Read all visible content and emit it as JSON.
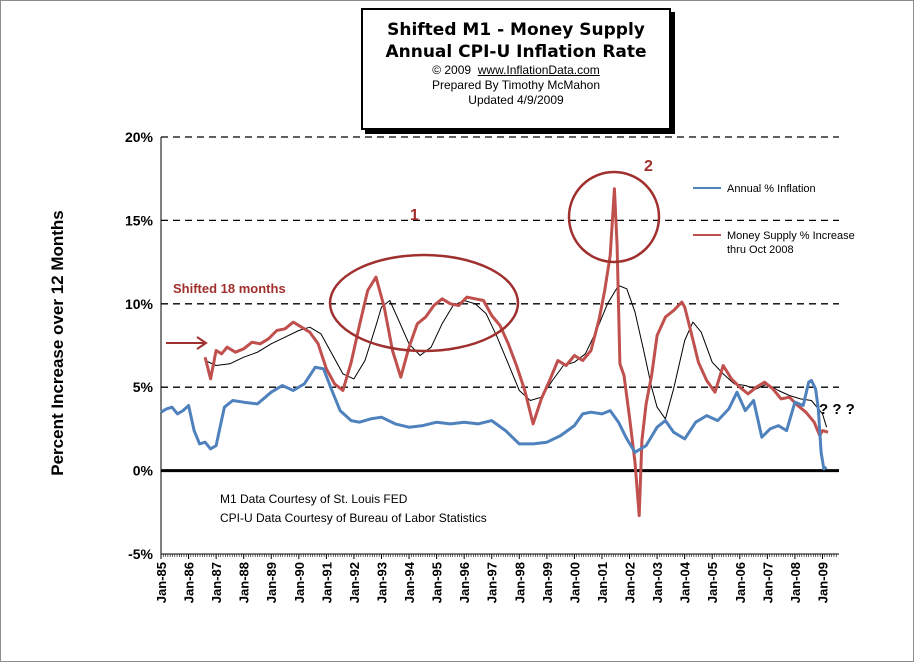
{
  "title_box": {
    "line1": "Shifted M1 - Money Supply",
    "line2": "Annual CPI-U Inflation Rate",
    "copyright": "© 2009",
    "website": "www.InflationData.com",
    "prepared": "Prepared By Timothy McMahon",
    "updated": "Updated 4/9/2009"
  },
  "annotations": {
    "shifted": "Shifted 18 months",
    "label_1": "1",
    "label_2": "2",
    "question": "? ? ?",
    "credit_m1": "M1 Data Courtesy of  St. Louis FED",
    "credit_cpi": "CPI-U Data Courtesy of   Bureau of Labor Statistics"
  },
  "colors": {
    "inflation": "#4f81bd",
    "money_supply": "#c0504d",
    "trend": "#000000",
    "annotation": "#a0302e"
  },
  "chart_data": {
    "type": "line",
    "ylabel": "Percent Increase over 12 Months",
    "xlabel": "",
    "ylim": [
      -5,
      20
    ],
    "yticks": [
      -5,
      0,
      5,
      10,
      15,
      20
    ],
    "ytick_labels": [
      "-5%",
      "0%",
      "5%",
      "10%",
      "15%",
      "20%"
    ],
    "xlim": [
      1985,
      2009.6
    ],
    "xtick_labels": [
      "Jan-85",
      "Jan-86",
      "Jan-87",
      "Jan-88",
      "Jan-89",
      "Jan-90",
      "Jan-91",
      "Jan-92",
      "Jan-93",
      "Jan-94",
      "Jan-95",
      "Jan-96",
      "Jan-97",
      "Jan-98",
      "Jan-99",
      "Jan-00",
      "Jan-01",
      "Jan-02",
      "Jan-03",
      "Jan-04",
      "Jan-05",
      "Jan-06",
      "Jan-07",
      "Jan-08",
      "Jan-09"
    ],
    "gridlines": "dashed at 5%, 10%, 15%, 20%",
    "legend_position": "right",
    "series": [
      {
        "name": "Annual % Inflation",
        "color": "#4f81bd",
        "x": [
          1985.0,
          1985.2,
          1985.4,
          1985.6,
          1985.8,
          1986.0,
          1986.2,
          1986.4,
          1986.6,
          1986.8,
          1987.0,
          1987.3,
          1987.6,
          1988.0,
          1988.5,
          1989.0,
          1989.4,
          1989.8,
          1990.2,
          1990.6,
          1990.9,
          1991.2,
          1991.5,
          1991.9,
          1992.2,
          1992.6,
          1993.0,
          1993.5,
          1994.0,
          1994.5,
          1995.0,
          1995.5,
          1996.0,
          1996.5,
          1997.0,
          1997.5,
          1998.0,
          1998.5,
          1999.0,
          1999.5,
          2000.0,
          2000.3,
          2000.6,
          2001.0,
          2001.3,
          2001.6,
          2001.9,
          2002.2,
          2002.6,
          2003.0,
          2003.3,
          2003.6,
          2004.0,
          2004.4,
          2004.8,
          2005.2,
          2005.6,
          2005.9,
          2006.2,
          2006.5,
          2006.8,
          2007.1,
          2007.4,
          2007.7,
          2008.0,
          2008.3,
          2008.5,
          2008.6,
          2008.75,
          2008.85,
          2008.95,
          2009.05,
          2009.15
        ],
        "values": [
          3.5,
          3.7,
          3.8,
          3.4,
          3.6,
          3.9,
          2.4,
          1.6,
          1.7,
          1.3,
          1.5,
          3.8,
          4.2,
          4.1,
          4.0,
          4.7,
          5.1,
          4.8,
          5.2,
          6.2,
          6.1,
          4.8,
          3.6,
          3.0,
          2.9,
          3.1,
          3.2,
          2.8,
          2.6,
          2.7,
          2.9,
          2.8,
          2.9,
          2.8,
          3.0,
          2.4,
          1.6,
          1.6,
          1.7,
          2.1,
          2.7,
          3.4,
          3.5,
          3.4,
          3.6,
          2.9,
          1.9,
          1.1,
          1.5,
          2.6,
          3.0,
          2.3,
          1.9,
          2.9,
          3.3,
          3.0,
          3.7,
          4.7,
          3.6,
          4.2,
          2.0,
          2.5,
          2.7,
          2.4,
          4.1,
          3.9,
          5.3,
          5.4,
          4.9,
          3.7,
          1.1,
          0.1,
          0.2
        ]
      },
      {
        "name": "Money Supply % Increase thru Oct 2008",
        "color": "#c0504d",
        "x": [
          1986.6,
          1986.8,
          1987.0,
          1987.2,
          1987.4,
          1987.7,
          1988.0,
          1988.3,
          1988.6,
          1988.9,
          1989.2,
          1989.5,
          1989.8,
          1990.1,
          1990.4,
          1990.7,
          1991.0,
          1991.3,
          1991.6,
          1991.9,
          1992.2,
          1992.5,
          1992.8,
          1993.1,
          1993.4,
          1993.7,
          1994.0,
          1994.3,
          1994.6,
          1994.9,
          1995.2,
          1995.5,
          1995.8,
          1996.1,
          1996.4,
          1996.7,
          1997.0,
          1997.3,
          1997.6,
          1997.9,
          1998.2,
          1998.5,
          1998.8,
          1999.1,
          1999.4,
          1999.7,
          2000.0,
          2000.3,
          2000.6,
          2000.9,
          2001.1,
          2001.3,
          2001.45,
          2001.55,
          2001.65,
          2001.8,
          2002.0,
          2002.2,
          2002.35,
          2002.45,
          2002.6,
          2002.8,
          2003.0,
          2003.3,
          2003.6,
          2003.9,
          2004.0,
          2004.2,
          2004.5,
          2004.8,
          2005.1,
          2005.4,
          2005.7,
          2006.0,
          2006.3,
          2006.6,
          2006.9,
          2007.2,
          2007.5,
          2007.8,
          2008.1,
          2008.4,
          2008.7,
          2008.9,
          2009.0,
          2009.2
        ],
        "values": [
          6.8,
          5.5,
          7.2,
          7.0,
          7.4,
          7.1,
          7.3,
          7.7,
          7.6,
          7.9,
          8.4,
          8.5,
          8.9,
          8.6,
          8.3,
          7.6,
          6.1,
          5.2,
          4.8,
          6.5,
          8.7,
          10.8,
          11.6,
          9.8,
          7.2,
          5.6,
          7.4,
          8.8,
          9.2,
          9.9,
          10.3,
          10.0,
          9.9,
          10.4,
          10.3,
          10.2,
          9.3,
          8.7,
          7.6,
          6.3,
          4.8,
          2.8,
          4.3,
          5.4,
          6.6,
          6.3,
          6.9,
          6.6,
          7.2,
          9.1,
          10.8,
          12.9,
          16.9,
          13.5,
          6.4,
          5.7,
          3.2,
          0.5,
          -2.7,
          1.8,
          4.0,
          5.7,
          8.1,
          9.2,
          9.6,
          10.1,
          9.8,
          8.5,
          6.5,
          5.4,
          4.7,
          6.3,
          5.5,
          5.0,
          4.6,
          5.0,
          5.3,
          4.9,
          4.3,
          4.4,
          3.9,
          3.5,
          2.9,
          2.1,
          2.4,
          2.3
        ]
      },
      {
        "name": "",
        "color": "#000000",
        "x": [
          1986.6,
          1987.0,
          1987.5,
          1988.0,
          1988.5,
          1989.0,
          1989.5,
          1990.0,
          1990.4,
          1990.8,
          1991.2,
          1991.6,
          1992.0,
          1992.4,
          1992.8,
          1993.0,
          1993.3,
          1993.6,
          1994.0,
          1994.4,
          1994.8,
          1995.2,
          1995.6,
          1996.0,
          1996.4,
          1996.8,
          1997.2,
          1997.6,
          1998.0,
          1998.4,
          1998.8,
          1999.2,
          1999.6,
          2000.0,
          2000.4,
          2000.8,
          2001.2,
          2001.6,
          2001.9,
          2002.2,
          2002.5,
          2002.8,
          2003.0,
          2003.3,
          2003.6,
          2004.0,
          2004.3,
          2004.6,
          2005.0,
          2005.4,
          2005.8,
          2006.2,
          2006.6,
          2007.0,
          2007.4,
          2007.8,
          2008.2,
          2008.6,
          2009.0,
          2009.15
        ],
        "values": [
          6.6,
          6.3,
          6.4,
          6.8,
          7.1,
          7.6,
          8.0,
          8.4,
          8.6,
          8.2,
          7.0,
          5.8,
          5.5,
          6.6,
          8.7,
          9.8,
          10.2,
          9.1,
          7.6,
          6.9,
          7.4,
          8.8,
          9.9,
          10.2,
          10.0,
          9.4,
          8.0,
          6.4,
          4.8,
          4.2,
          4.4,
          5.4,
          6.3,
          6.5,
          7.0,
          8.4,
          10.0,
          11.1,
          10.9,
          9.5,
          7.3,
          5.0,
          3.8,
          3.1,
          4.9,
          7.8,
          8.9,
          8.3,
          6.5,
          5.8,
          5.2,
          5.1,
          4.9,
          5.2,
          4.8,
          4.5,
          4.3,
          4.2,
          3.4,
          2.6
        ]
      }
    ]
  }
}
